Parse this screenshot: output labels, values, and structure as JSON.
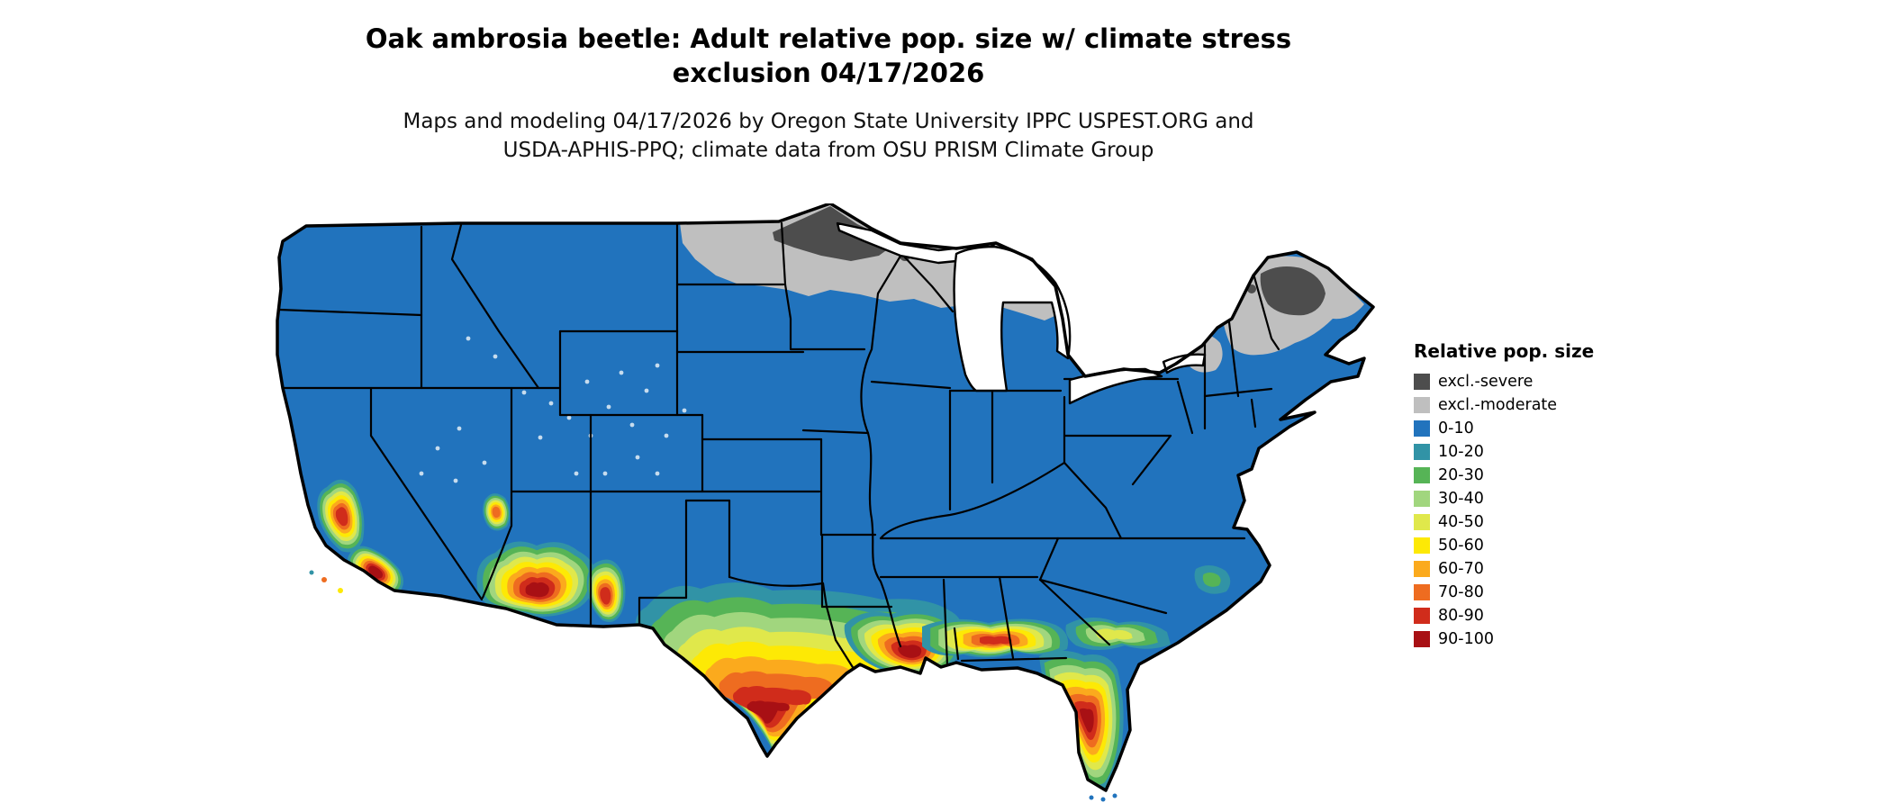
{
  "header": {
    "title_line1": "Oak ambrosia beetle: Adult relative pop. size w/ climate stress",
    "title_line2": "exclusion 04/17/2026",
    "subtitle_line1": "Maps and modeling 04/17/2026 by Oregon State University IPPC USPEST.ORG and",
    "subtitle_line2": "USDA-APHIS-PPQ; climate data from OSU PRISM Climate Group"
  },
  "legend": {
    "title": "Relative pop. size",
    "items": [
      {
        "label": "excl.-severe",
        "color": "#4d4d4d"
      },
      {
        "label": "excl.-moderate",
        "color": "#bfbfbf"
      },
      {
        "label": "0-10",
        "color": "#2173bd"
      },
      {
        "label": "10-20",
        "color": "#3193a6"
      },
      {
        "label": "20-30",
        "color": "#56b456"
      },
      {
        "label": "30-40",
        "color": "#a1d67e"
      },
      {
        "label": "40-50",
        "color": "#e0e84b"
      },
      {
        "label": "50-60",
        "color": "#fde905"
      },
      {
        "label": "60-70",
        "color": "#fbaa1d"
      },
      {
        "label": "70-80",
        "color": "#ee6c20"
      },
      {
        "label": "80-90",
        "color": "#d02c1b"
      },
      {
        "label": "90-100",
        "color": "#a81014"
      }
    ]
  }
}
